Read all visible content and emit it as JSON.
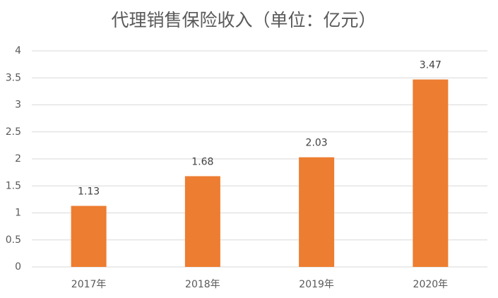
{
  "chart_data": {
    "type": "bar",
    "title": "代理销售保险收入（单位：亿元）",
    "categories": [
      "2017年",
      "2018年",
      "2019年",
      "2020年"
    ],
    "values": [
      1.13,
      1.68,
      2.03,
      3.47
    ],
    "color": "#ed7d31",
    "ylim": [
      0,
      4
    ],
    "yticks": [
      0,
      0.5,
      1,
      1.5,
      2,
      2.5,
      3,
      3.5,
      4
    ],
    "grid": true
  }
}
